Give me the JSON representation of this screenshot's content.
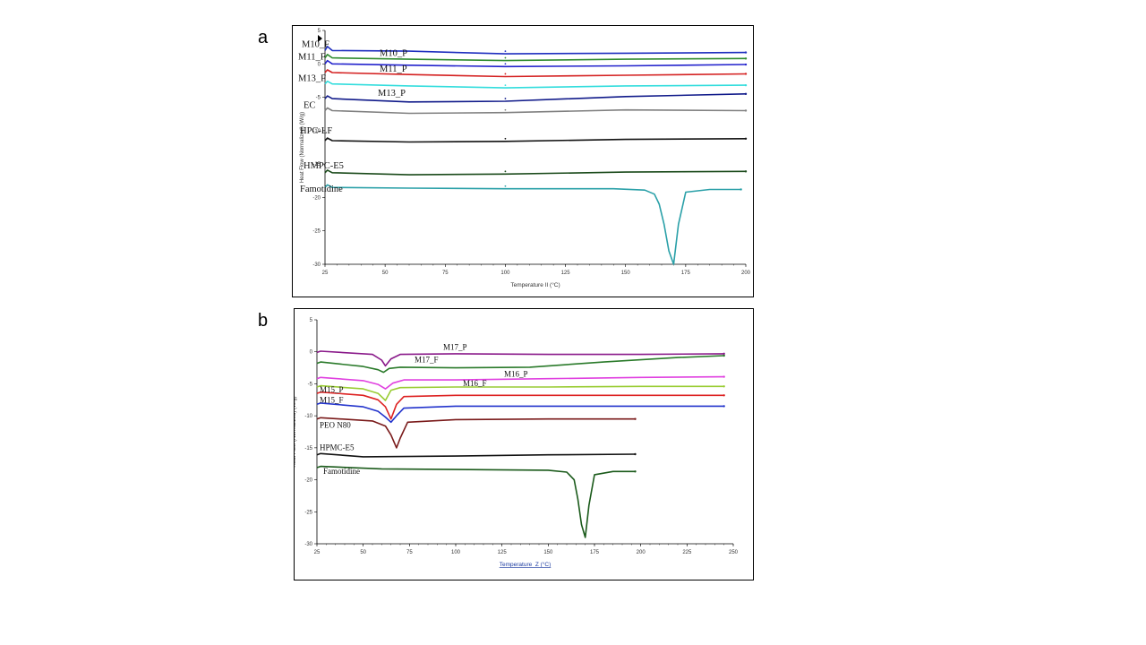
{
  "panels": [
    {
      "letter": "a"
    },
    {
      "letter": "b"
    }
  ],
  "chart_data": [
    {
      "type": "line",
      "xlabel": "Temperature ΙΙ (°C)",
      "ylabel": "Heat Flow (Normalized) (W/g)",
      "xlim": [
        25,
        200
      ],
      "ylim": [
        -30,
        5
      ],
      "xticks": [
        "25",
        "50",
        "75",
        "100",
        "125",
        "150",
        "175",
        "200"
      ],
      "yticks": [
        "5",
        "0",
        "-5",
        "-10",
        "-15",
        "-20",
        "-25",
        "-30"
      ],
      "series": [
        {
          "name": "M10_F",
          "color": "#1f2fbf",
          "x": [
            25,
            26,
            28,
            60,
            100,
            150,
            200
          ],
          "y": [
            2.0,
            2.6,
            2.0,
            1.9,
            1.5,
            1.6,
            1.7
          ]
        },
        {
          "name": "M10_P",
          "color": "#2e8b2e",
          "x": [
            25,
            26,
            28,
            60,
            100,
            150,
            200
          ],
          "y": [
            0.9,
            1.4,
            0.9,
            0.7,
            0.5,
            0.7,
            0.8
          ]
        },
        {
          "name": "M11_F",
          "color": "#2222cc",
          "x": [
            25,
            26,
            28,
            60,
            100,
            150,
            200
          ],
          "y": [
            0.0,
            0.5,
            0.0,
            -0.2,
            -0.4,
            -0.3,
            -0.1
          ]
        },
        {
          "name": "M11_P",
          "color": "#d42020",
          "x": [
            25,
            26,
            28,
            60,
            100,
            150,
            200
          ],
          "y": [
            -1.3,
            -0.9,
            -1.3,
            -1.6,
            -1.9,
            -1.7,
            -1.5
          ]
        },
        {
          "name": "M13_F",
          "color": "#33dddd",
          "x": [
            25,
            26,
            28,
            60,
            100,
            150,
            200
          ],
          "y": [
            -3.0,
            -2.6,
            -3.0,
            -3.3,
            -3.6,
            -3.3,
            -3.2
          ]
        },
        {
          "name": "M13_P",
          "color": "#101a8a",
          "x": [
            25,
            26,
            28,
            60,
            100,
            150,
            200
          ],
          "y": [
            -5.2,
            -4.8,
            -5.2,
            -5.7,
            -5.6,
            -4.9,
            -4.5
          ]
        },
        {
          "name": "EC",
          "color": "#808080",
          "x": [
            25,
            26,
            28,
            60,
            100,
            150,
            200
          ],
          "y": [
            -7.0,
            -6.6,
            -7.0,
            -7.4,
            -7.3,
            -6.9,
            -7.0
          ]
        },
        {
          "name": "HPC-LF",
          "color": "#111111",
          "x": [
            25,
            26,
            28,
            60,
            100,
            150,
            200
          ],
          "y": [
            -11.5,
            -11.1,
            -11.5,
            -11.7,
            -11.6,
            -11.3,
            -11.2
          ]
        },
        {
          "name": "HMPC-E5",
          "color": "#1a4a1a",
          "x": [
            25,
            26,
            28,
            60,
            100,
            150,
            200
          ],
          "y": [
            -16.3,
            -15.9,
            -16.3,
            -16.6,
            -16.5,
            -16.2,
            -16.1
          ]
        },
        {
          "name": "Famotidine",
          "color": "#2aa0a8",
          "x": [
            25,
            26,
            28,
            60,
            100,
            145,
            158,
            162,
            164,
            166,
            168,
            170,
            172,
            175,
            185,
            198
          ],
          "y": [
            -18.5,
            -18.1,
            -18.5,
            -18.6,
            -18.7,
            -18.7,
            -18.9,
            -19.5,
            -21,
            -24,
            -28,
            -30,
            -24,
            -19.2,
            -18.8,
            -18.8
          ]
        }
      ]
    },
    {
      "type": "line",
      "xlabel": "Temperature_Z (°C)",
      "ylabel": "Heat Flow (Normalized) (W/g)",
      "xlim": [
        25,
        250
      ],
      "ylim": [
        -30,
        5
      ],
      "xticks": [
        "25",
        "50",
        "75",
        "100",
        "125",
        "150",
        "175",
        "200",
        "225",
        "250"
      ],
      "yticks": [
        "5",
        "0",
        "-5",
        "-10",
        "-15",
        "-20",
        "-25",
        "-30"
      ],
      "series": [
        {
          "name": "M17_P",
          "color": "#8a1a8a",
          "x": [
            25,
            27,
            55,
            60,
            62,
            65,
            70,
            100,
            150,
            200,
            245
          ],
          "y": [
            -0.1,
            0.1,
            -0.4,
            -1.3,
            -2.2,
            -1.1,
            -0.4,
            -0.3,
            -0.4,
            -0.4,
            -0.3
          ]
        },
        {
          "name": "M17_F",
          "color": "#2a7a2a",
          "x": [
            25,
            27,
            50,
            58,
            61,
            64,
            70,
            100,
            140,
            180,
            220,
            245
          ],
          "y": [
            -1.8,
            -1.6,
            -2.3,
            -2.8,
            -3.2,
            -2.6,
            -2.4,
            -2.5,
            -2.4,
            -1.6,
            -0.9,
            -0.6
          ]
        },
        {
          "name": "M16_P",
          "color": "#e040e0",
          "x": [
            25,
            27,
            50,
            58,
            62,
            66,
            72,
            100,
            150,
            200,
            245
          ],
          "y": [
            -4.2,
            -4.0,
            -4.5,
            -5.1,
            -5.8,
            -4.9,
            -4.4,
            -4.4,
            -4.2,
            -4.0,
            -3.9
          ]
        },
        {
          "name": "M16_F",
          "color": "#99cc33",
          "x": [
            25,
            27,
            50,
            58,
            62,
            65,
            70,
            100,
            150,
            200,
            245
          ],
          "y": [
            -5.5,
            -5.3,
            -5.8,
            -6.5,
            -7.6,
            -6.0,
            -5.6,
            -5.5,
            -5.5,
            -5.4,
            -5.4
          ]
        },
        {
          "name": "M15_P",
          "color": "#dd2222",
          "x": [
            25,
            27,
            50,
            58,
            62,
            65,
            68,
            72,
            100,
            150,
            200,
            245
          ],
          "y": [
            -6.5,
            -6.3,
            -6.8,
            -7.5,
            -8.6,
            -10.5,
            -8.2,
            -7.0,
            -6.8,
            -6.8,
            -6.8,
            -6.8
          ]
        },
        {
          "name": "M15_F",
          "color": "#2233cc",
          "x": [
            25,
            27,
            50,
            58,
            62,
            65,
            68,
            72,
            100,
            150,
            200,
            245
          ],
          "y": [
            -8.2,
            -8.0,
            -8.6,
            -9.3,
            -10.2,
            -11.0,
            -10.0,
            -8.8,
            -8.5,
            -8.5,
            -8.5,
            -8.5
          ]
        },
        {
          "name": "PEO N80",
          "color": "#7a1a1a",
          "x": [
            25,
            27,
            55,
            62,
            65,
            68,
            70,
            74,
            100,
            150,
            197
          ],
          "y": [
            -10.5,
            -10.3,
            -10.8,
            -11.6,
            -13.0,
            -15.0,
            -13.5,
            -11.0,
            -10.6,
            -10.5,
            -10.5
          ]
        },
        {
          "name": "HPMC-E5",
          "color": "#111111",
          "x": [
            25,
            27,
            50,
            100,
            150,
            197
          ],
          "y": [
            -16.1,
            -15.9,
            -16.4,
            -16.3,
            -16.1,
            -16.0
          ]
        },
        {
          "name": "Famotidine",
          "color": "#1a5a1a",
          "x": [
            25,
            27,
            60,
            100,
            150,
            160,
            164,
            166,
            168,
            170,
            172,
            175,
            185,
            197
          ],
          "y": [
            -18.1,
            -17.9,
            -18.3,
            -18.4,
            -18.5,
            -18.8,
            -20,
            -23,
            -27,
            -29,
            -24,
            -19.2,
            -18.7,
            -18.7
          ]
        }
      ]
    }
  ]
}
